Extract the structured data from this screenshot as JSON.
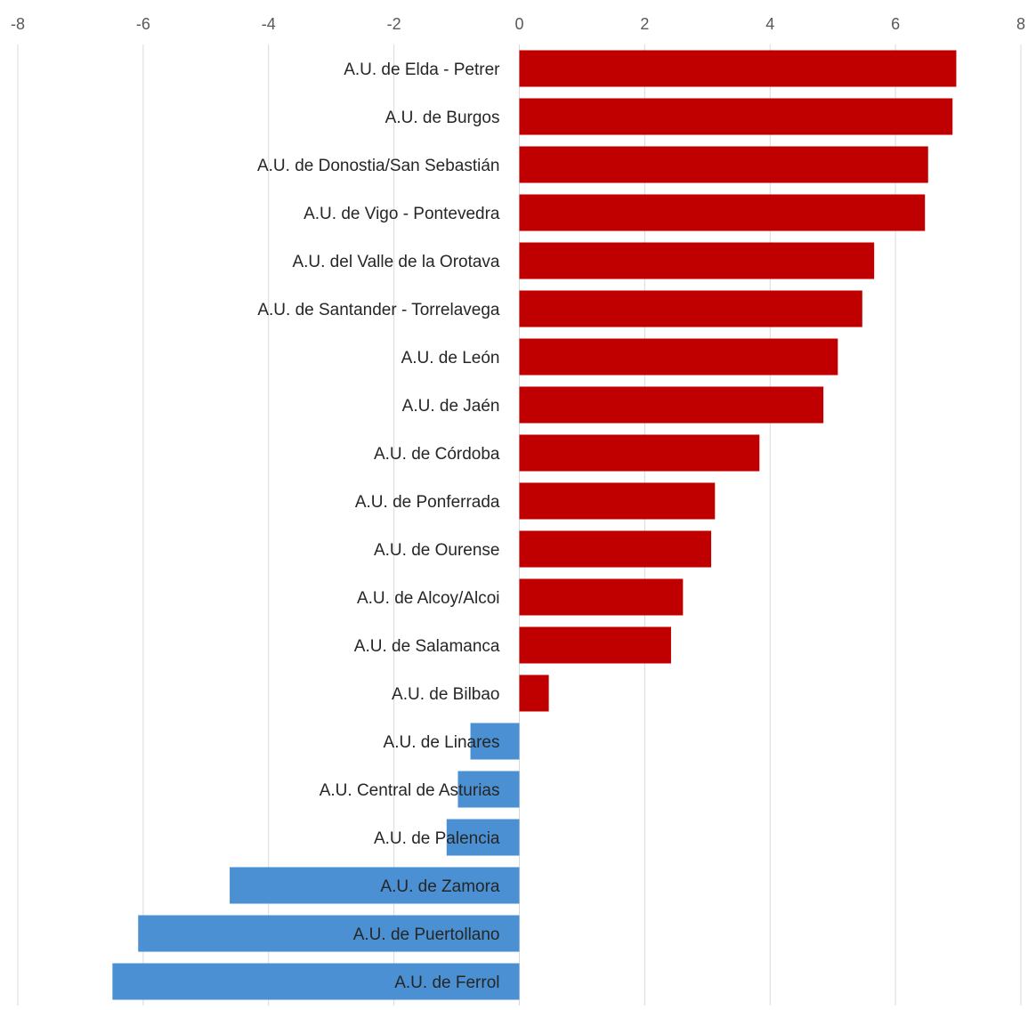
{
  "chart_data": {
    "type": "bar",
    "orientation": "horizontal",
    "title": "",
    "xlabel": "",
    "ylabel": "",
    "xlim": [
      -8,
      8
    ],
    "x_ticks": [
      -8,
      -6,
      -4,
      -2,
      0,
      2,
      4,
      6,
      8
    ],
    "x_axis_position": "top",
    "grid": true,
    "legend": "none",
    "positive_color": "#c00000",
    "negative_color": "#4a90d2",
    "categories": [
      "A.U. de Elda - Petrer",
      "A.U. de Burgos",
      "A.U. de Donostia/San Sebastián",
      "A.U. de Vigo - Pontevedra",
      "A.U. del Valle de la Orotava",
      "A.U. de Santander - Torrelavega",
      "A.U. de León",
      "A.U. de Jaén",
      "A.U. de Córdoba",
      "A.U. de Ponferrada",
      "A.U. de Ourense",
      "A.U. de Alcoy/Alcoi",
      "A.U. de Salamanca",
      "A.U. de Bilbao",
      "A.U. de Linares",
      "A.U. Central de Asturias",
      "A.U. de Palencia",
      "A.U. de Zamora",
      "A.U. de Puertollano",
      "A.U. de Ferrol"
    ],
    "values": [
      6.97,
      6.91,
      6.52,
      6.47,
      5.66,
      5.47,
      5.08,
      4.85,
      3.83,
      3.12,
      3.06,
      2.61,
      2.42,
      0.47,
      -0.78,
      -0.98,
      -1.16,
      -4.62,
      -6.08,
      -6.49
    ]
  }
}
